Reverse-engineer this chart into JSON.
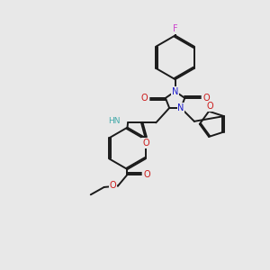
{
  "bg_color": "#e8e8e8",
  "bond_color": "#1a1a1a",
  "N_color": "#1a1acc",
  "O_color": "#cc1a1a",
  "F_color": "#cc44cc",
  "H_color": "#44aaaa",
  "lw": 1.4,
  "dbo": 0.06,
  "xlim": [
    0,
    10
  ],
  "ylim": [
    0,
    10
  ]
}
